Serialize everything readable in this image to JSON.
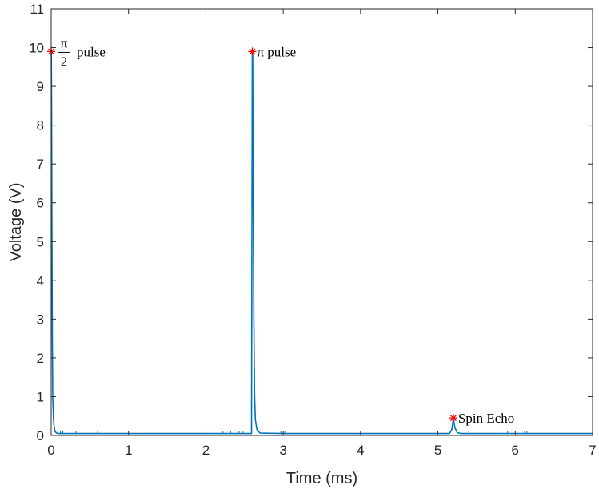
{
  "chart_data": {
    "type": "line",
    "xlabel": "Time (ms)",
    "ylabel": "Voltage (V)",
    "xlim": [
      0,
      7
    ],
    "ylim": [
      0,
      11
    ],
    "xticks": [
      0,
      1,
      2,
      3,
      4,
      5,
      6,
      7
    ],
    "yticks": [
      0,
      1,
      2,
      3,
      4,
      5,
      6,
      7,
      8,
      9,
      10,
      11
    ],
    "grid": false,
    "series": [
      {
        "color": "#0072BD",
        "x": [
          0.0,
          0.002,
          0.006,
          0.01,
          0.015,
          0.02,
          0.03,
          0.04,
          0.05,
          0.07,
          0.1,
          0.2,
          0.5,
          1.0,
          1.5,
          2.0,
          2.5,
          2.59,
          2.595,
          2.6,
          2.605,
          2.61,
          2.62,
          2.63,
          2.64,
          2.66,
          2.7,
          3.0,
          3.5,
          4.0,
          4.5,
          5.0,
          5.15,
          5.18,
          5.2,
          5.22,
          5.25,
          5.3,
          5.5,
          6.0,
          6.5,
          7.0
        ],
        "y": [
          9.9,
          9.9,
          8.0,
          5.0,
          2.5,
          1.0,
          0.4,
          0.2,
          0.1,
          0.06,
          0.05,
          0.05,
          0.05,
          0.05,
          0.05,
          0.05,
          0.05,
          0.05,
          5.0,
          9.9,
          9.9,
          7.0,
          3.0,
          1.0,
          0.4,
          0.15,
          0.06,
          0.05,
          0.05,
          0.05,
          0.05,
          0.05,
          0.05,
          0.15,
          0.45,
          0.2,
          0.07,
          0.05,
          0.05,
          0.05,
          0.05,
          0.05
        ]
      }
    ],
    "markers": [
      {
        "x": 0.0,
        "y": 9.9,
        "color": "#FF0000"
      },
      {
        "x": 2.6,
        "y": 9.9,
        "color": "#FF0000"
      },
      {
        "x": 5.2,
        "y": 0.45,
        "color": "#FF0000"
      }
    ],
    "annotations": [
      {
        "text": "pulse",
        "prefix_fraction": {
          "numerator": "π",
          "denominator": "2"
        },
        "x": 0.0,
        "y": 9.9
      },
      {
        "text": "π pulse",
        "x": 2.6,
        "y": 9.9
      },
      {
        "text": "Spin Echo",
        "x": 5.2,
        "y": 0.45
      }
    ]
  }
}
